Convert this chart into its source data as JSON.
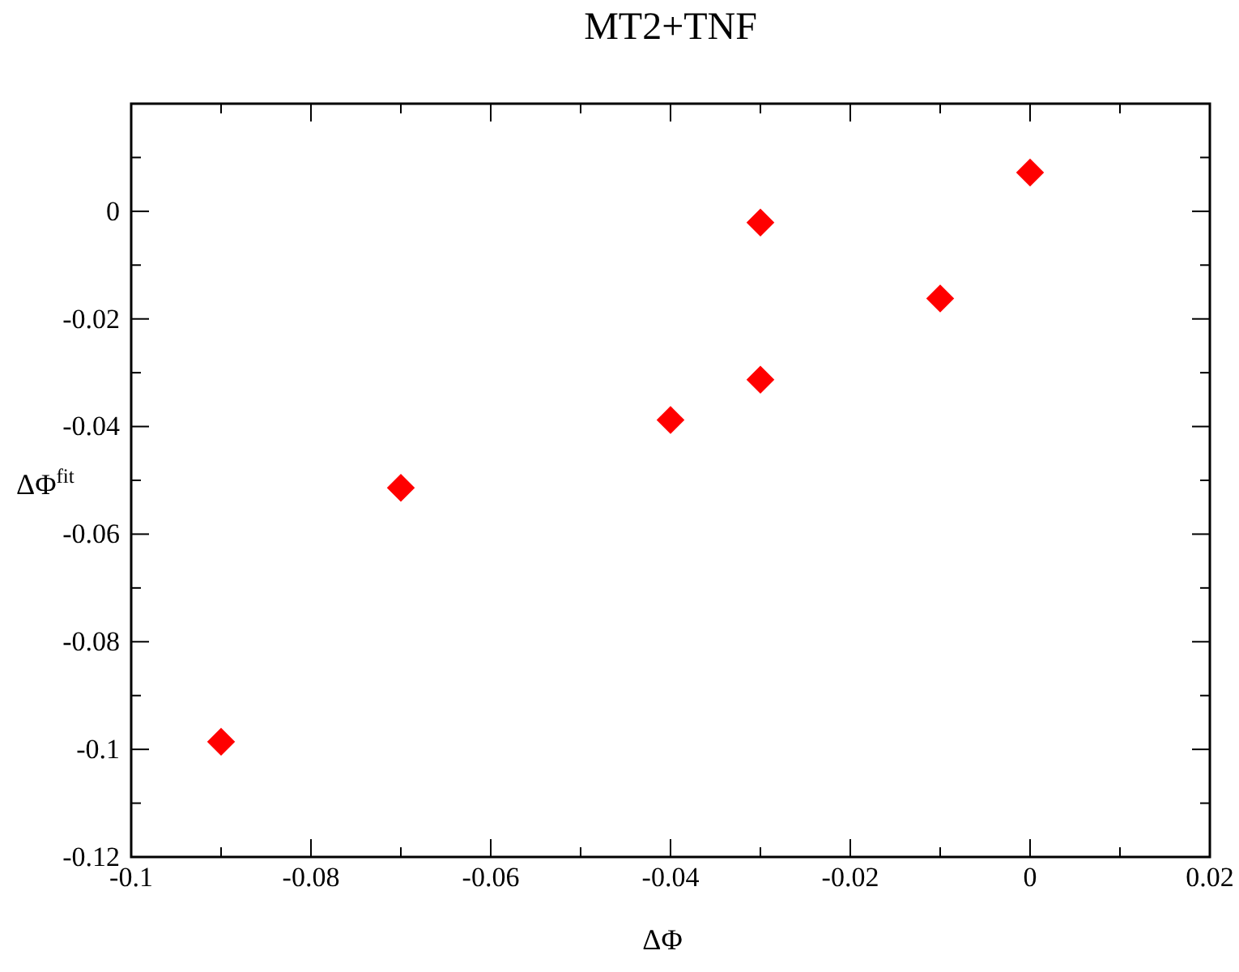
{
  "chart_data": {
    "type": "scatter",
    "title": "MT2+TNF",
    "xlabel": "ΔΦ",
    "ylabel": "ΔΦ$^{fit}$",
    "marker": "diamond",
    "x": [
      -0.09,
      -0.07,
      -0.04,
      -0.03,
      -0.03,
      -0.01,
      0
    ],
    "series": [
      {
        "color": "#ff0000",
        "values": [
          -0.0986,
          -0.0514,
          -0.0388,
          -0.0021,
          -0.0313,
          -0.0162,
          0.0072
        ]
      }
    ],
    "xlim": [
      -0.1,
      0.02
    ],
    "xticks": [
      -0.1,
      {
        "value": -0.09,
        "label": null
      },
      -0.08,
      {
        "value": -0.07,
        "label": null
      },
      -0.06,
      {
        "value": -0.05,
        "label": null
      },
      -0.04,
      {
        "value": -0.03,
        "label": null
      },
      -0.02,
      {
        "value": -0.01,
        "label": null
      },
      0,
      {
        "value": 0.01,
        "label": null
      },
      0.02
    ],
    "ylim": [
      -0.12,
      0.02
    ],
    "yticks": [
      -0.12,
      {
        "value": -0.11,
        "label": null
      },
      -0.1,
      {
        "value": -0.09,
        "label": null
      },
      -0.08,
      {
        "value": -0.07,
        "label": null
      },
      -0.06,
      {
        "value": -0.05,
        "label": null
      },
      -0.04,
      {
        "value": -0.03,
        "label": null
      },
      -0.02,
      {
        "value": -0.01,
        "label": null
      },
      0,
      {
        "value": 0.01,
        "label": null
      }
    ],
    "grid": false
  }
}
